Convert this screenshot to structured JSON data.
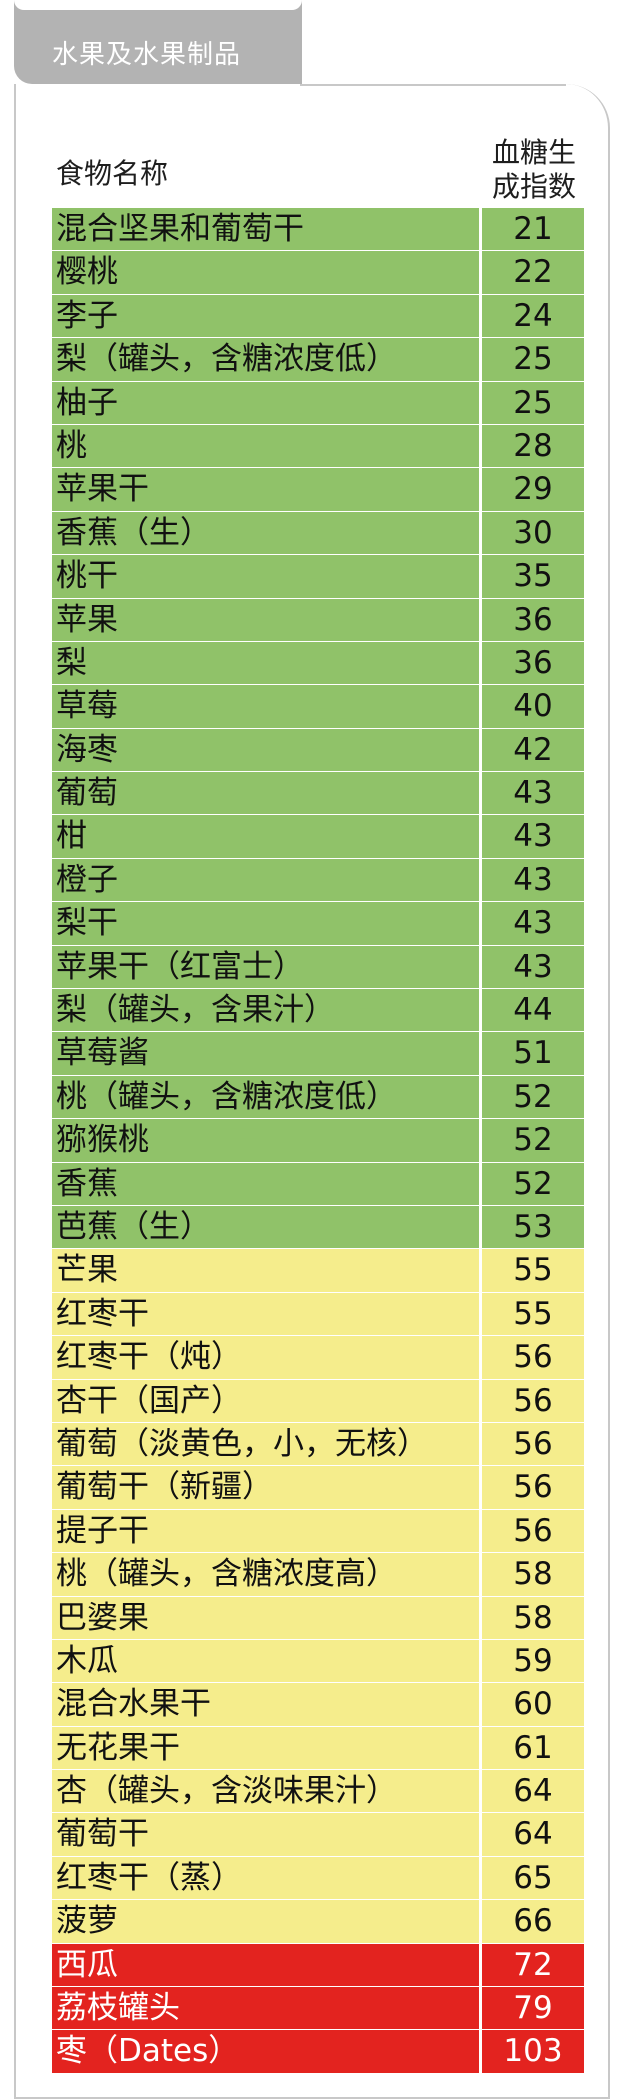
{
  "section_tab": {
    "label": "水果及水果制品"
  },
  "table": {
    "headers": {
      "name": "食物名称",
      "gi": "血糖生成指数"
    },
    "colors": {
      "green": "#90c269",
      "yellow": "#f5ed8c",
      "red": "#e3231f"
    },
    "rows": [
      {
        "name": "混合坚果和葡萄干",
        "gi": "21",
        "level": "green"
      },
      {
        "name": "樱桃",
        "gi": "22",
        "level": "green"
      },
      {
        "name": "李子",
        "gi": "24",
        "level": "green"
      },
      {
        "name": "梨（罐头，含糖浓度低）",
        "gi": "25",
        "level": "green"
      },
      {
        "name": "柚子",
        "gi": "25",
        "level": "green"
      },
      {
        "name": "桃",
        "gi": "28",
        "level": "green"
      },
      {
        "name": "苹果干",
        "gi": "29",
        "level": "green"
      },
      {
        "name": "香蕉（生）",
        "gi": "30",
        "level": "green"
      },
      {
        "name": "桃干",
        "gi": "35",
        "level": "green"
      },
      {
        "name": "苹果",
        "gi": "36",
        "level": "green"
      },
      {
        "name": "梨",
        "gi": "36",
        "level": "green"
      },
      {
        "name": "草莓",
        "gi": "40",
        "level": "green"
      },
      {
        "name": "海枣",
        "gi": "42",
        "level": "green"
      },
      {
        "name": "葡萄",
        "gi": "43",
        "level": "green"
      },
      {
        "name": "柑",
        "gi": "43",
        "level": "green"
      },
      {
        "name": "橙子",
        "gi": "43",
        "level": "green"
      },
      {
        "name": "梨干",
        "gi": "43",
        "level": "green"
      },
      {
        "name": "苹果干（红富士）",
        "gi": "43",
        "level": "green"
      },
      {
        "name": "梨（罐头，含果汁）",
        "gi": "44",
        "level": "green"
      },
      {
        "name": "草莓酱",
        "gi": "51",
        "level": "green"
      },
      {
        "name": "桃（罐头，含糖浓度低）",
        "gi": "52",
        "level": "green"
      },
      {
        "name": "猕猴桃",
        "gi": "52",
        "level": "green"
      },
      {
        "name": "香蕉",
        "gi": "52",
        "level": "green"
      },
      {
        "name": "芭蕉（生）",
        "gi": "53",
        "level": "green"
      },
      {
        "name": "芒果",
        "gi": "55",
        "level": "yellow"
      },
      {
        "name": "红枣干",
        "gi": "55",
        "level": "yellow"
      },
      {
        "name": "红枣干（炖）",
        "gi": "56",
        "level": "yellow"
      },
      {
        "name": "杏干（国产）",
        "gi": "56",
        "level": "yellow"
      },
      {
        "name": "葡萄（淡黄色，小，无核）",
        "gi": "56",
        "level": "yellow"
      },
      {
        "name": "葡萄干（新疆）",
        "gi": "56",
        "level": "yellow"
      },
      {
        "name": "提子干",
        "gi": "56",
        "level": "yellow"
      },
      {
        "name": "桃（罐头，含糖浓度高）",
        "gi": "58",
        "level": "yellow"
      },
      {
        "name": "巴婆果",
        "gi": "58",
        "level": "yellow"
      },
      {
        "name": "木瓜",
        "gi": "59",
        "level": "yellow"
      },
      {
        "name": "混合水果干",
        "gi": "60",
        "level": "yellow"
      },
      {
        "name": "无花果干",
        "gi": "61",
        "level": "yellow"
      },
      {
        "name": "杏（罐头，含淡味果汁）",
        "gi": "64",
        "level": "yellow"
      },
      {
        "name": "葡萄干",
        "gi": "64",
        "level": "yellow"
      },
      {
        "name": "红枣干（蒸）",
        "gi": "65",
        "level": "yellow"
      },
      {
        "name": "菠萝",
        "gi": "66",
        "level": "yellow"
      },
      {
        "name": "西瓜",
        "gi": "72",
        "level": "red"
      },
      {
        "name": "荔枝罐头",
        "gi": "79",
        "level": "red"
      },
      {
        "name": "枣（Dates）",
        "gi": "103",
        "level": "red"
      }
    ]
  }
}
